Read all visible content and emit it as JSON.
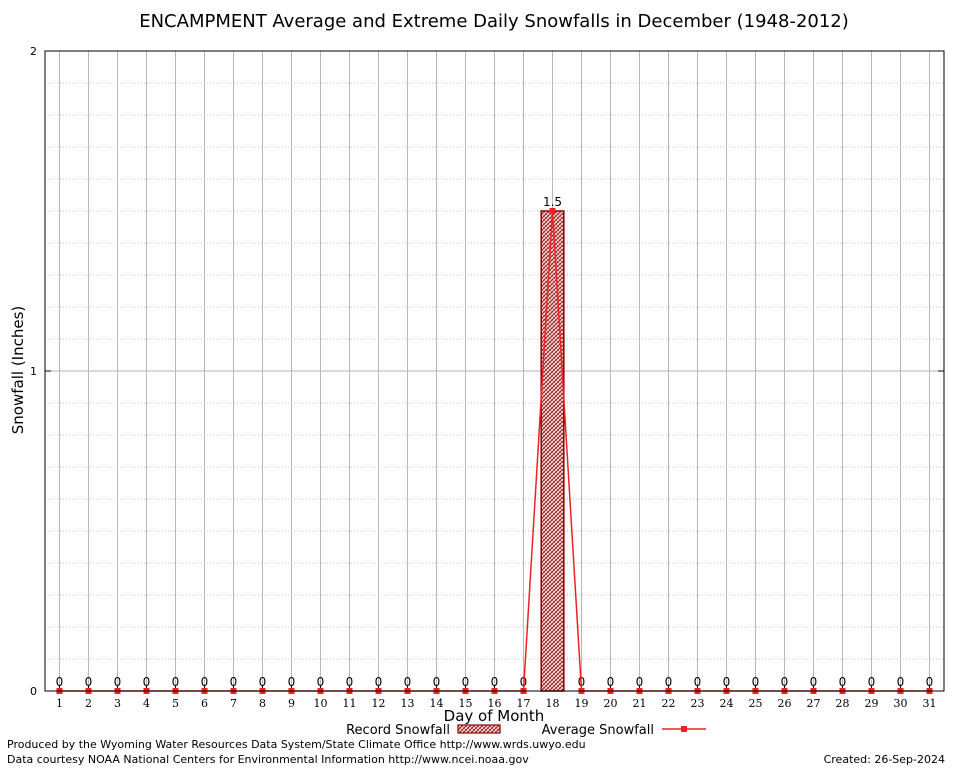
{
  "chart_data": {
    "type": "bar",
    "title": "ENCAMPMENT Average and Extreme Daily Snowfalls in December (1948-2012)",
    "xlabel": "Day of Month",
    "ylabel": "Snowfall (Inches)",
    "ylim": [
      0,
      2
    ],
    "yticks": [
      "0",
      "1",
      "2"
    ],
    "grid": true,
    "legend_position": "bottom-center",
    "categories": [
      "1",
      "2",
      "3",
      "4",
      "5",
      "6",
      "7",
      "8",
      "9",
      "10",
      "11",
      "12",
      "13",
      "14",
      "15",
      "16",
      "17",
      "18",
      "19",
      "20",
      "21",
      "22",
      "23",
      "24",
      "25",
      "26",
      "27",
      "28",
      "29",
      "30",
      "31"
    ],
    "series": [
      {
        "name": "Record Snowfall",
        "kind": "bar",
        "values": [
          0,
          0,
          0,
          0,
          0,
          0,
          0,
          0,
          0,
          0,
          0,
          0,
          0,
          0,
          0,
          0,
          0,
          1.5,
          0,
          0,
          0,
          0,
          0,
          0,
          0,
          0,
          0,
          0,
          0,
          0,
          0
        ],
        "data_labels": [
          "0",
          "0",
          "0",
          "0",
          "0",
          "0",
          "0",
          "0",
          "0",
          "0",
          "0",
          "0",
          "0",
          "0",
          "0",
          "0",
          "0",
          "1.5",
          "0",
          "0",
          "0",
          "0",
          "0",
          "0",
          "0",
          "0",
          "0",
          "0",
          "0",
          "0",
          "0"
        ]
      },
      {
        "name": "Average Snowfall",
        "kind": "line",
        "values": [
          0,
          0,
          0,
          0,
          0,
          0,
          0,
          0,
          0,
          0,
          0,
          0,
          0,
          0,
          0,
          0,
          0,
          1.5,
          0,
          0,
          0,
          0,
          0,
          0,
          0,
          0,
          0,
          0,
          0,
          0,
          0
        ]
      }
    ],
    "colors": {
      "bar_edge": "#8b0000",
      "bar_fill": "#d8b0b0",
      "line": "#ee2222"
    }
  },
  "footer": {
    "produced_by": "Produced by the Wyoming Water Resources Data System/State Climate Office http://www.wrds.uwyo.edu",
    "data_courtesy": "Data courtesy NOAA National Centers for Environmental Information http://www.ncei.noaa.gov",
    "created": "Created:  26-Sep-2024"
  }
}
